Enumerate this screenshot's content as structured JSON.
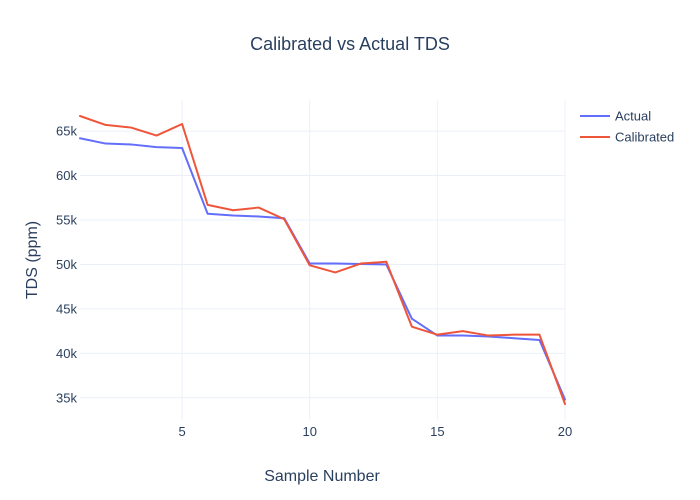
{
  "chart_data": {
    "type": "line",
    "title": "Calibrated vs Actual TDS",
    "xlabel": "Sample Number",
    "ylabel": "TDS (ppm)",
    "xlim": [
      1,
      20
    ],
    "ylim": [
      32500,
      68500
    ],
    "xticks": [
      5,
      10,
      15,
      20
    ],
    "xtick_labels": [
      "5",
      "10",
      "15",
      "20"
    ],
    "yticks": [
      35000,
      40000,
      45000,
      50000,
      55000,
      60000,
      65000
    ],
    "ytick_labels": [
      "35k",
      "40k",
      "45k",
      "50k",
      "55k",
      "60k",
      "65k"
    ],
    "grid": true,
    "legend_position": "top-right",
    "x": [
      1,
      2,
      3,
      4,
      5,
      6,
      7,
      8,
      9,
      10,
      11,
      12,
      13,
      14,
      15,
      16,
      17,
      18,
      19,
      20
    ],
    "series": [
      {
        "name": "Actual",
        "color": "#636efa",
        "values": [
          64200,
          63600,
          63500,
          63200,
          63100,
          55700,
          55500,
          55400,
          55200,
          50100,
          50100,
          50050,
          50000,
          43900,
          42000,
          42000,
          41900,
          41700,
          41500,
          34800
        ]
      },
      {
        "name": "Calibrated",
        "color": "#ef553b",
        "values": [
          66700,
          65700,
          65400,
          64500,
          65800,
          56700,
          56100,
          56400,
          55100,
          49900,
          49100,
          50100,
          50300,
          43000,
          42100,
          42500,
          42000,
          42100,
          42100,
          34300
        ]
      }
    ]
  }
}
